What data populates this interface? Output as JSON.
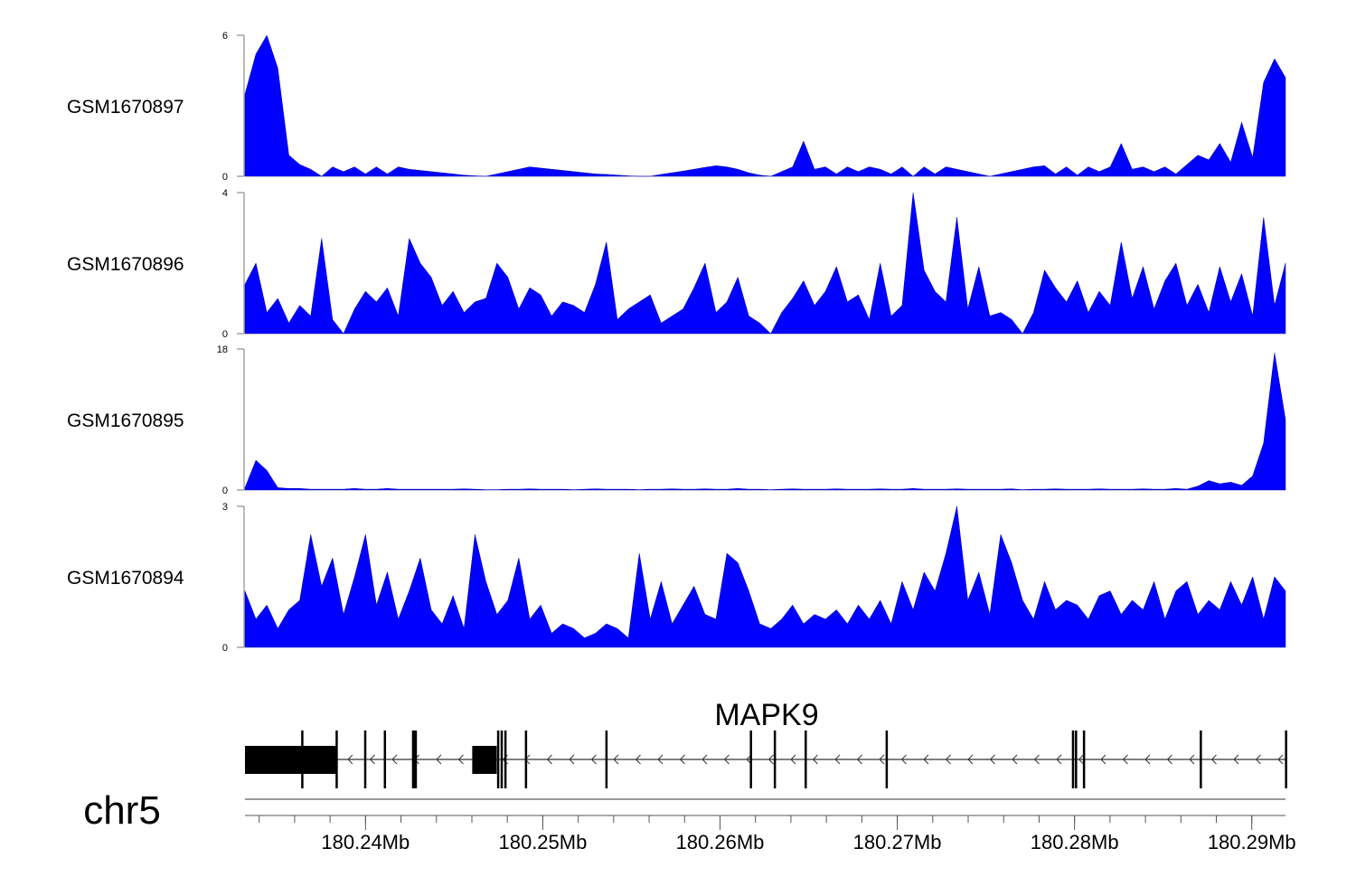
{
  "chart_data": {
    "type": "area",
    "chromosome": "chr5",
    "x_range_mb": [
      180.2332,
      180.2919
    ],
    "tracks": [
      {
        "name": "GSM1670897",
        "ylim": [
          0,
          6
        ],
        "ticks": [
          "6",
          "0"
        ],
        "color": "#0000ff",
        "values": [
          3.5,
          5.2,
          6.0,
          4.6,
          0.9,
          0.5,
          0.3,
          0,
          0.4,
          0.2,
          0.4,
          0.1,
          0.4,
          0.1,
          0.4,
          0.3,
          0.25,
          0.2,
          0.15,
          0.1,
          0.05,
          0.02,
          0,
          0.1,
          0.2,
          0.3,
          0.4,
          0.35,
          0.3,
          0.25,
          0.2,
          0.15,
          0.1,
          0.08,
          0.05,
          0.02,
          0,
          0,
          0.08,
          0.15,
          0.22,
          0.3,
          0.38,
          0.45,
          0.4,
          0.3,
          0.15,
          0.05,
          0,
          0.2,
          0.4,
          1.5,
          0.3,
          0.4,
          0.1,
          0.4,
          0.2,
          0.4,
          0.3,
          0.1,
          0.4,
          0,
          0.4,
          0.1,
          0.4,
          0.3,
          0.2,
          0.1,
          0,
          0.1,
          0.2,
          0.3,
          0.4,
          0.45,
          0.1,
          0.4,
          0.05,
          0.4,
          0.2,
          0.4,
          1.4,
          0.3,
          0.4,
          0.2,
          0.4,
          0.1,
          0.5,
          0.9,
          0.7,
          1.4,
          0.6,
          2.3,
          0.8,
          4.0,
          5.0,
          4.2
        ]
      },
      {
        "name": "GSM1670896",
        "ylim": [
          0,
          4
        ],
        "ticks": [
          "4",
          "0"
        ],
        "color": "#0000ff",
        "values": [
          1.4,
          2.0,
          0.6,
          1.0,
          0.3,
          0.8,
          0.5,
          2.7,
          0.4,
          0,
          0.7,
          1.2,
          0.9,
          1.3,
          0.5,
          2.7,
          2.0,
          1.6,
          0.8,
          1.2,
          0.6,
          0.9,
          1.0,
          2.0,
          1.6,
          0.7,
          1.3,
          1.1,
          0.5,
          0.9,
          0.8,
          0.6,
          1.4,
          2.6,
          0.4,
          0.7,
          0.9,
          1.1,
          0.3,
          0.5,
          0.7,
          1.3,
          2.0,
          0.6,
          0.9,
          1.6,
          0.5,
          0.3,
          0,
          0.6,
          1.0,
          1.5,
          0.8,
          1.2,
          1.9,
          0.9,
          1.1,
          0.4,
          2.0,
          0.5,
          0.8,
          4.0,
          1.8,
          1.2,
          0.9,
          3.3,
          0.7,
          1.9,
          0.5,
          0.6,
          0.4,
          0,
          0.6,
          1.8,
          1.3,
          0.9,
          1.5,
          0.6,
          1.2,
          0.8,
          2.6,
          1.0,
          1.9,
          0.7,
          1.5,
          2.0,
          0.8,
          1.4,
          0.6,
          1.9,
          0.9,
          1.7,
          0.5,
          3.3,
          0.8,
          2.0
        ]
      },
      {
        "name": "GSM1670895",
        "ylim": [
          0,
          18
        ],
        "ticks": [
          "18",
          "0"
        ],
        "color": "#0000ff",
        "values": [
          0.3,
          3.8,
          2.5,
          0.3,
          0.2,
          0.2,
          0.1,
          0.1,
          0.1,
          0.1,
          0.2,
          0.1,
          0.1,
          0.2,
          0.1,
          0.1,
          0.1,
          0.1,
          0.1,
          0.1,
          0.15,
          0.1,
          0.05,
          0.05,
          0.1,
          0.1,
          0.15,
          0.1,
          0.1,
          0.1,
          0.05,
          0.1,
          0.15,
          0.1,
          0.1,
          0.1,
          0.05,
          0.1,
          0.1,
          0.15,
          0.1,
          0.1,
          0.15,
          0.1,
          0.1,
          0.2,
          0.1,
          0.1,
          0.05,
          0.1,
          0.15,
          0.1,
          0.1,
          0.1,
          0.15,
          0.1,
          0.1,
          0.1,
          0.15,
          0.1,
          0.1,
          0.2,
          0.1,
          0.1,
          0.1,
          0.15,
          0.1,
          0.1,
          0.1,
          0.1,
          0.15,
          0.05,
          0.1,
          0.1,
          0.15,
          0.1,
          0.1,
          0.1,
          0.15,
          0.1,
          0.1,
          0.1,
          0.15,
          0.1,
          0.1,
          0.2,
          0.1,
          0.5,
          1.2,
          0.8,
          1.0,
          0.6,
          1.8,
          6.0,
          17.5,
          9.0
        ]
      },
      {
        "name": "GSM1670894",
        "ylim": [
          0,
          3
        ],
        "ticks": [
          "3",
          "0"
        ],
        "color": "#0000ff",
        "values": [
          1.2,
          0.6,
          0.9,
          0.4,
          0.8,
          1.0,
          2.4,
          1.3,
          1.9,
          0.7,
          1.5,
          2.4,
          0.9,
          1.6,
          0.6,
          1.2,
          1.9,
          0.8,
          0.5,
          1.1,
          0.4,
          2.4,
          1.4,
          0.7,
          1.0,
          1.9,
          0.6,
          0.9,
          0.3,
          0.5,
          0.4,
          0.2,
          0.3,
          0.5,
          0.4,
          0.2,
          2.0,
          0.6,
          1.4,
          0.5,
          0.9,
          1.3,
          0.7,
          0.6,
          2.0,
          1.8,
          1.2,
          0.5,
          0.4,
          0.6,
          0.9,
          0.5,
          0.7,
          0.6,
          0.8,
          0.5,
          0.9,
          0.6,
          1.0,
          0.5,
          1.4,
          0.8,
          1.6,
          1.2,
          2.0,
          3.0,
          1.0,
          1.6,
          0.7,
          2.4,
          1.8,
          1.0,
          0.6,
          1.4,
          0.8,
          1.0,
          0.9,
          0.6,
          1.1,
          1.2,
          0.7,
          1.0,
          0.8,
          1.4,
          0.6,
          1.2,
          1.4,
          0.7,
          1.0,
          0.8,
          1.4,
          0.9,
          1.5,
          0.6,
          1.5,
          1.2
        ]
      }
    ],
    "gene": {
      "name": "MAPK9",
      "start": 180.2332,
      "end": 180.2919,
      "strand": "-",
      "utr_blocks": [
        [
          180.2332,
          180.23837
        ],
        [
          180.24602,
          180.2474
        ]
      ],
      "exons": [
        [
          180.23637,
          180.23649
        ],
        [
          180.23831,
          180.2384
        ],
        [
          180.23992,
          180.23998
        ],
        [
          180.24103,
          180.24112
        ],
        [
          180.24262,
          180.2429
        ],
        [
          180.24742,
          180.24749
        ],
        [
          180.24762,
          180.24768
        ],
        [
          180.24783,
          180.24789
        ],
        [
          180.24899,
          180.24908
        ],
        [
          180.25353,
          180.25362
        ],
        [
          180.26168,
          180.26179
        ],
        [
          180.26303,
          180.2631
        ],
        [
          180.26477,
          180.26483
        ],
        [
          180.26934,
          180.26945
        ],
        [
          180.27985,
          180.27996
        ],
        [
          180.28002,
          180.28009
        ],
        [
          180.28047,
          180.28055
        ],
        [
          180.28706,
          180.28713
        ],
        [
          180.29187,
          180.29194
        ]
      ]
    },
    "axis": {
      "minor_tick_step_mb": 0.002,
      "labels": [
        {
          "pos": 180.24,
          "text": "180.24Mb"
        },
        {
          "pos": 180.25,
          "text": "180.25Mb"
        },
        {
          "pos": 180.26,
          "text": "180.26Mb"
        },
        {
          "pos": 180.27,
          "text": "180.27Mb"
        },
        {
          "pos": 180.28,
          "text": "180.28Mb"
        },
        {
          "pos": 180.29,
          "text": "180.29Mb"
        }
      ]
    }
  }
}
